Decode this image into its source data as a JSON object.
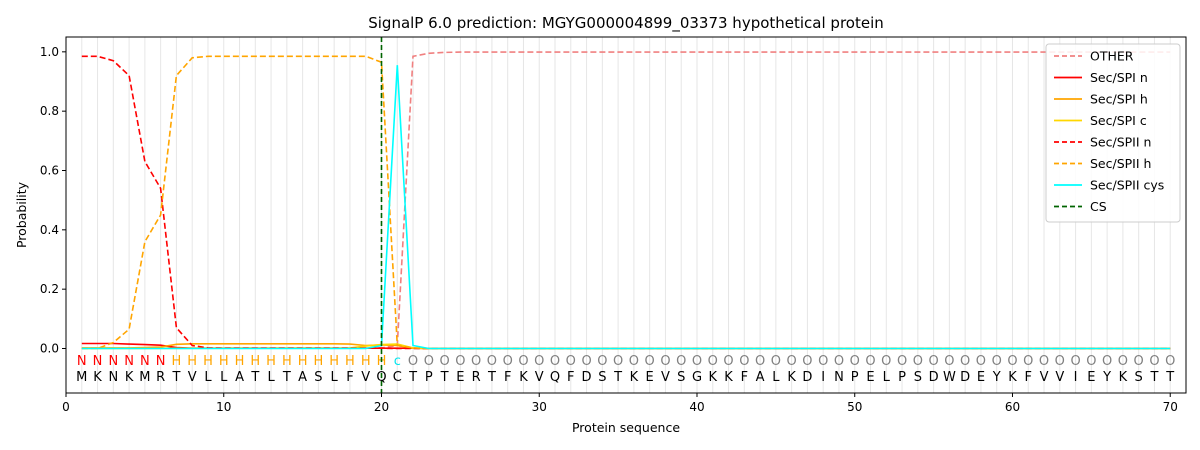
{
  "chart_data": {
    "type": "line",
    "title": "SignalP 6.0 prediction: MGYG000004899_03373 hypothetical protein",
    "xlabel": "Protein sequence",
    "ylabel": "Probability",
    "xlim": [
      0,
      71
    ],
    "ylim": [
      -0.15,
      1.05
    ],
    "xticks": [
      0,
      10,
      20,
      30,
      40,
      50,
      60,
      70
    ],
    "yticks": [
      0.0,
      0.2,
      0.4,
      0.6,
      0.8,
      1.0
    ],
    "ytick_labels": [
      "0.0",
      "0.2",
      "0.4",
      "0.6",
      "0.8",
      "1.0"
    ],
    "grid": "vertical lines at each residue",
    "legend_position": "top-right",
    "sequence": [
      "M",
      "K",
      "N",
      "K",
      "M",
      "R",
      "T",
      "V",
      "L",
      "L",
      "A",
      "T",
      "L",
      "T",
      "A",
      "S",
      "L",
      "F",
      "V",
      "Q",
      "C",
      "T",
      "P",
      "T",
      "E",
      "R",
      "T",
      "F",
      "K",
      "V",
      "Q",
      "F",
      "D",
      "S",
      "T",
      "K",
      "E",
      "V",
      "S",
      "G",
      "K",
      "K",
      "F",
      "A",
      "L",
      "K",
      "D",
      "I",
      "N",
      "P",
      "E",
      "L",
      "P",
      "S",
      "D",
      "W",
      "D",
      "E",
      "Y",
      "K",
      "F",
      "V",
      "V",
      "I",
      "E",
      "Y",
      "K",
      "S",
      "T",
      "T"
    ],
    "annotation": [
      "N",
      "N",
      "N",
      "N",
      "N",
      "N",
      "H",
      "H",
      "H",
      "H",
      "H",
      "H",
      "H",
      "H",
      "H",
      "H",
      "H",
      "H",
      "H",
      "H",
      "c",
      "O",
      "O",
      "O",
      "O",
      "O",
      "O",
      "O",
      "O",
      "O",
      "O",
      "O",
      "O",
      "O",
      "O",
      "O",
      "O",
      "O",
      "O",
      "O",
      "O",
      "O",
      "O",
      "O",
      "O",
      "O",
      "O",
      "O",
      "O",
      "O",
      "O",
      "O",
      "O",
      "O",
      "O",
      "O",
      "O",
      "O",
      "O",
      "O",
      "O",
      "O",
      "O",
      "O",
      "O",
      "O",
      "O",
      "O",
      "O",
      "O"
    ],
    "annotation_colors": {
      "N": "#ff0000",
      "H": "#ffa500",
      "c": "#00e5ee",
      "O": "#808080"
    },
    "series": [
      {
        "name": "OTHER",
        "color": "#f08080",
        "dash": "dashed",
        "x": [
          1,
          2,
          3,
          4,
          5,
          6,
          7,
          8,
          9,
          10,
          11,
          12,
          13,
          14,
          15,
          16,
          17,
          18,
          19,
          20,
          21,
          22,
          23,
          24,
          25,
          70
        ],
        "y": [
          0.001,
          0.001,
          0.001,
          0.001,
          0.001,
          0.001,
          0.001,
          0.001,
          0.001,
          0.001,
          0.001,
          0.001,
          0.001,
          0.001,
          0.001,
          0.001,
          0.001,
          0.001,
          0.001,
          0.002,
          0.01,
          0.985,
          0.995,
          0.998,
          0.999,
          0.999
        ]
      },
      {
        "name": "Sec/SPI n",
        "color": "#ff0000",
        "dash": "solid",
        "x": [
          1,
          2,
          3,
          4,
          5,
          6,
          7,
          8,
          20,
          21,
          22,
          23,
          70
        ],
        "y": [
          0.017,
          0.017,
          0.017,
          0.015,
          0.013,
          0.011,
          0.003,
          0.001,
          0.001,
          0.001,
          0.001,
          0.0,
          0.0
        ]
      },
      {
        "name": "Sec/SPI h",
        "color": "#ffa500",
        "dash": "solid",
        "x": [
          1,
          2,
          3,
          4,
          5,
          6,
          7,
          8,
          9,
          10,
          11,
          12,
          13,
          14,
          15,
          16,
          17,
          18,
          19,
          20,
          21,
          22,
          23,
          70
        ],
        "y": [
          0.002,
          0.002,
          0.002,
          0.002,
          0.003,
          0.005,
          0.014,
          0.016,
          0.016,
          0.016,
          0.016,
          0.016,
          0.016,
          0.016,
          0.016,
          0.016,
          0.016,
          0.015,
          0.01,
          0.012,
          0.01,
          0.001,
          0.0,
          0.0
        ]
      },
      {
        "name": "Sec/SPI c",
        "color": "#ffd700",
        "dash": "solid",
        "x": [
          1,
          18,
          19,
          20,
          21,
          22,
          23,
          70
        ],
        "y": [
          0.0,
          0.002,
          0.008,
          0.013,
          0.015,
          0.002,
          0.0,
          0.0
        ]
      },
      {
        "name": "Sec/SPII n",
        "color": "#ff0000",
        "dash": "dashed",
        "x": [
          1,
          2,
          3,
          4,
          5,
          6,
          7,
          8,
          9,
          10,
          19,
          20,
          21,
          22,
          23,
          70
        ],
        "y": [
          0.985,
          0.985,
          0.97,
          0.92,
          0.63,
          0.54,
          0.07,
          0.01,
          0.002,
          0.001,
          0.001,
          0.001,
          0.0,
          0.0,
          0.0,
          0.0
        ]
      },
      {
        "name": "Sec/SPII h",
        "color": "#ffa500",
        "dash": "dashed",
        "x": [
          1,
          2,
          3,
          4,
          5,
          6,
          7,
          8,
          9,
          10,
          11,
          12,
          13,
          14,
          15,
          16,
          17,
          18,
          19,
          20,
          21,
          22,
          23,
          70
        ],
        "y": [
          0.0,
          0.0,
          0.02,
          0.065,
          0.36,
          0.45,
          0.92,
          0.98,
          0.985,
          0.985,
          0.985,
          0.985,
          0.985,
          0.985,
          0.985,
          0.985,
          0.985,
          0.985,
          0.985,
          0.965,
          0.01,
          0.002,
          0.0,
          0.0
        ]
      },
      {
        "name": "Sec/SPII cys",
        "color": "#00ffff",
        "dash": "solid",
        "x": [
          1,
          19,
          20,
          21,
          22,
          23,
          70
        ],
        "y": [
          0.0,
          0.0,
          0.01,
          0.955,
          0.01,
          0.0,
          0.0
        ]
      },
      {
        "name": "CS",
        "color": "#006400",
        "dash": "dashed",
        "vline_x": 20
      }
    ]
  }
}
